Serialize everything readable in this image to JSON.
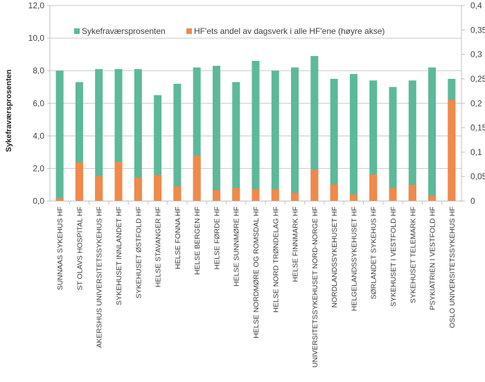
{
  "chart_data": {
    "type": "bar",
    "stacking": "overlapping-stacked",
    "title": "",
    "xlabel": "",
    "ylabel": "Sykefraværsprosenten",
    "y2label": "",
    "ylim": [
      0,
      12
    ],
    "y2lim": [
      0,
      0.4
    ],
    "yticks": [
      "0,0",
      "2,0",
      "4,0",
      "6,0",
      "8,0",
      "10,0",
      "12,0"
    ],
    "y2ticks": [
      "0",
      "0,05",
      "0,1",
      "0,15",
      "0,2",
      "0,25",
      "0,3",
      "0,35",
      "0,4"
    ],
    "grid": true,
    "legend_position": "top-center",
    "categories": [
      "SUNNAAS SYKEHUS HF",
      "ST OLAVS HOSPITAL HF",
      "AKERSHUS UNIVERSITETSSYKEHUS HF",
      "SYKEHUSET INNLANDET HF",
      "SYKEHUSET ØSTFOLD HF",
      "HELSE STAVANGER HF",
      "HELSE FONNA HF",
      "HELSE BERGEN HF",
      "HELSE FØRDE HF",
      "HELSE SUNNMØRE HF",
      "HELSE NORDMØRE OG ROMSDAL HF",
      "HELSE NORD TRØNDELAG HF",
      "HELSE FINNMARK HF",
      "UNIVERSITETSSYKEHUSET NORD-NORGE HF",
      "NORDLANDSSYKEHUSET HF",
      "HELGELANDSSYKEHUSET HF",
      "SØRLANDET SYKEHUS HF",
      "SYKEHUSET I VESTFOLD HF",
      "SYKEHUSET TELEMARK HF",
      "PSYKIATRIEN I VESTFOLD HF",
      "OSLO UNIVERSITETSSYKEHUS HF"
    ],
    "series": [
      {
        "name": "Sykefraværsprosenten",
        "axis": "left",
        "color": "#5cb99a",
        "values": [
          8.0,
          7.3,
          8.1,
          8.1,
          8.1,
          6.5,
          7.2,
          8.2,
          8.3,
          7.3,
          8.6,
          8.0,
          8.2,
          8.9,
          7.5,
          7.8,
          7.4,
          7.0,
          7.4,
          8.2,
          7.5
        ]
      },
      {
        "name": "HF'ets andel av dagsverk i alle HF'ene (høyre akse)",
        "axis": "right",
        "color": "#f0894a",
        "values": [
          0.006,
          0.079,
          0.051,
          0.08,
          0.048,
          0.053,
          0.03,
          0.093,
          0.022,
          0.027,
          0.024,
          0.024,
          0.017,
          0.064,
          0.034,
          0.013,
          0.054,
          0.027,
          0.033,
          0.011,
          0.207
        ]
      }
    ]
  }
}
